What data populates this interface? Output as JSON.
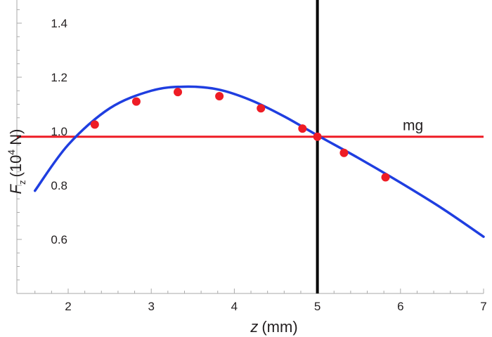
{
  "chart_data": {
    "type": "scatter",
    "xlabel_var": "z",
    "xlabel_unit": "(mm)",
    "ylabel_var": "F",
    "ylabel_sub": "z",
    "ylabel_open": "(10",
    "ylabel_exp": "4",
    "ylabel_close": " N)",
    "xlim": [
      1.5,
      7.0
    ],
    "ylim": [
      0.42,
      1.5
    ],
    "x_ticks": [
      2,
      3,
      4,
      5,
      6,
      7
    ],
    "y_ticks": [
      0.6,
      0.8,
      1.0,
      1.2,
      1.4
    ],
    "x_tick_labels": [
      "2",
      "3",
      "4",
      "5",
      "6",
      "7"
    ],
    "y_tick_labels": [
      "0.6",
      "0.8",
      "1.0",
      "1.2",
      "1.4"
    ],
    "grid": false,
    "series": [
      {
        "kind": "points",
        "color": "#ee1c25",
        "points": [
          [
            2.32,
            1.025
          ],
          [
            2.82,
            1.11
          ],
          [
            3.32,
            1.145
          ],
          [
            3.82,
            1.13
          ],
          [
            4.32,
            1.085
          ],
          [
            4.82,
            1.01
          ],
          [
            5.0,
            0.98
          ],
          [
            5.32,
            0.92
          ],
          [
            5.82,
            0.83
          ]
        ]
      },
      {
        "kind": "curve",
        "color": "#1f3ee0",
        "points": [
          [
            1.6,
            0.78
          ],
          [
            2.0,
            0.95
          ],
          [
            2.5,
            1.085
          ],
          [
            3.0,
            1.15
          ],
          [
            3.4,
            1.165
          ],
          [
            3.8,
            1.155
          ],
          [
            4.2,
            1.115
          ],
          [
            4.6,
            1.055
          ],
          [
            5.0,
            0.985
          ],
          [
            5.5,
            0.9
          ],
          [
            6.0,
            0.81
          ],
          [
            6.5,
            0.715
          ],
          [
            7.0,
            0.61
          ]
        ]
      },
      {
        "kind": "hline",
        "name": "mg",
        "color": "#ee1c25",
        "y": 0.98
      },
      {
        "kind": "vline",
        "color": "#000000",
        "x": 5.0
      }
    ]
  }
}
